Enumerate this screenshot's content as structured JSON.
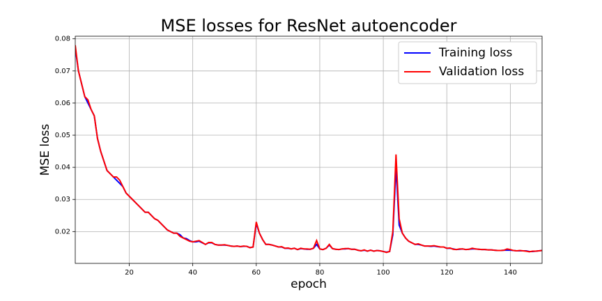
{
  "chart_data": {
    "type": "line",
    "title": "MSE losses for ResNet autoencoder",
    "x_label": "epoch",
    "y_label": "MSE loss",
    "x": [
      3,
      4,
      5,
      6,
      7,
      8,
      9,
      10,
      11,
      12,
      13,
      14,
      15,
      16,
      17,
      18,
      19,
      20,
      21,
      22,
      23,
      24,
      25,
      26,
      27,
      28,
      29,
      30,
      31,
      32,
      33,
      34,
      35,
      36,
      37,
      38,
      39,
      40,
      41,
      42,
      43,
      44,
      45,
      46,
      47,
      48,
      49,
      50,
      51,
      52,
      53,
      54,
      55,
      56,
      57,
      58,
      59,
      60,
      61,
      62,
      63,
      64,
      65,
      66,
      67,
      68,
      69,
      70,
      71,
      72,
      73,
      74,
      75,
      76,
      77,
      78,
      79,
      80,
      81,
      82,
      83,
      84,
      85,
      86,
      87,
      88,
      89,
      90,
      91,
      92,
      93,
      94,
      95,
      96,
      97,
      98,
      99,
      100,
      101,
      102,
      103,
      104,
      105,
      106,
      107,
      108,
      109,
      110,
      111,
      112,
      113,
      114,
      115,
      116,
      117,
      118,
      119,
      120,
      121,
      122,
      123,
      124,
      125,
      126,
      127,
      128,
      129,
      130,
      131,
      132,
      133,
      134,
      135,
      136,
      137,
      138,
      139,
      140,
      141,
      142,
      143,
      144,
      145,
      146,
      147,
      148,
      149,
      150
    ],
    "series": [
      {
        "name": "Training loss",
        "color": "#0000ff",
        "values": [
          0.077,
          0.07,
          0.066,
          0.062,
          0.06,
          0.058,
          0.056,
          0.049,
          0.045,
          0.042,
          0.039,
          0.038,
          0.037,
          0.036,
          0.035,
          0.034,
          0.032,
          0.031,
          0.03,
          0.029,
          0.028,
          0.027,
          0.026,
          0.026,
          0.025,
          0.024,
          0.0235,
          0.0225,
          0.0215,
          0.0205,
          0.02,
          0.0195,
          0.0195,
          0.019,
          0.018,
          0.0178,
          0.0172,
          0.0168,
          0.0168,
          0.017,
          0.0165,
          0.016,
          0.0165,
          0.0165,
          0.016,
          0.0158,
          0.0158,
          0.0158,
          0.0157,
          0.0155,
          0.0154,
          0.0155,
          0.0153,
          0.0154,
          0.0154,
          0.015,
          0.0152,
          0.0225,
          0.0195,
          0.0175,
          0.016,
          0.016,
          0.0158,
          0.0155,
          0.0152,
          0.0152,
          0.0148,
          0.0148,
          0.0146,
          0.0148,
          0.0144,
          0.0147,
          0.0146,
          0.0145,
          0.0145,
          0.0148,
          0.016,
          0.0146,
          0.0144,
          0.0148,
          0.0158,
          0.0147,
          0.0145,
          0.0144,
          0.0146,
          0.0146,
          0.0147,
          0.0145,
          0.0145,
          0.0142,
          0.014,
          0.0142,
          0.0139,
          0.0142,
          0.0139,
          0.0141,
          0.014,
          0.0138,
          0.0136,
          0.0138,
          0.019,
          0.04,
          0.022,
          0.0195,
          0.018,
          0.017,
          0.0165,
          0.016,
          0.016,
          0.0158,
          0.0155,
          0.0155,
          0.0154,
          0.0155,
          0.0153,
          0.0152,
          0.0152,
          0.0148,
          0.0148,
          0.0146,
          0.0144,
          0.0145,
          0.0146,
          0.0144,
          0.0145,
          0.0146,
          0.0146,
          0.0145,
          0.0144,
          0.0144,
          0.0143,
          0.0143,
          0.0142,
          0.0141,
          0.0141,
          0.0142,
          0.0142,
          0.0142,
          0.0141,
          0.014,
          0.014,
          0.014,
          0.014,
          0.0138,
          0.0138,
          0.0139,
          0.014,
          0.0141
        ]
      },
      {
        "name": "Validation loss",
        "color": "#ff0000",
        "values": [
          0.078,
          0.07,
          0.066,
          0.062,
          0.061,
          0.058,
          0.056,
          0.049,
          0.045,
          0.042,
          0.039,
          0.038,
          0.037,
          0.037,
          0.036,
          0.034,
          0.032,
          0.031,
          0.03,
          0.029,
          0.028,
          0.027,
          0.026,
          0.026,
          0.025,
          0.024,
          0.0235,
          0.0225,
          0.0215,
          0.0205,
          0.02,
          0.0195,
          0.0195,
          0.0185,
          0.018,
          0.0175,
          0.017,
          0.0168,
          0.017,
          0.0172,
          0.0166,
          0.016,
          0.0166,
          0.0166,
          0.016,
          0.0158,
          0.0158,
          0.0159,
          0.0157,
          0.0155,
          0.0154,
          0.0155,
          0.0153,
          0.0155,
          0.0154,
          0.015,
          0.0152,
          0.023,
          0.0195,
          0.0175,
          0.016,
          0.016,
          0.0158,
          0.0155,
          0.0152,
          0.0153,
          0.0148,
          0.0149,
          0.0146,
          0.0148,
          0.0144,
          0.0148,
          0.0146,
          0.0146,
          0.0145,
          0.0148,
          0.0172,
          0.0146,
          0.0144,
          0.0148,
          0.016,
          0.0147,
          0.0145,
          0.0144,
          0.0146,
          0.0147,
          0.0147,
          0.0145,
          0.0145,
          0.0142,
          0.014,
          0.0143,
          0.0139,
          0.0142,
          0.0139,
          0.0141,
          0.014,
          0.0138,
          0.0135,
          0.0138,
          0.02,
          0.044,
          0.024,
          0.0195,
          0.018,
          0.017,
          0.0165,
          0.016,
          0.0162,
          0.0158,
          0.0155,
          0.0155,
          0.0155,
          0.0156,
          0.0154,
          0.0152,
          0.0152,
          0.0148,
          0.0149,
          0.0145,
          0.0144,
          0.0146,
          0.0146,
          0.0144,
          0.0145,
          0.0148,
          0.0146,
          0.0145,
          0.0144,
          0.0144,
          0.0143,
          0.0143,
          0.0142,
          0.0141,
          0.0141,
          0.0142,
          0.0146,
          0.0144,
          0.0141,
          0.014,
          0.0141,
          0.014,
          0.0139,
          0.0137,
          0.0139,
          0.0139,
          0.014,
          0.0141
        ]
      }
    ],
    "xlim": [
      3,
      150
    ],
    "ylim": [
      0.0101,
      0.0808
    ],
    "xticks": [
      20,
      40,
      60,
      80,
      100,
      120,
      140
    ],
    "yticks": [
      0.02,
      0.03,
      0.04,
      0.05,
      0.06,
      0.07,
      0.08
    ],
    "grid": true,
    "legend": "upper right"
  }
}
